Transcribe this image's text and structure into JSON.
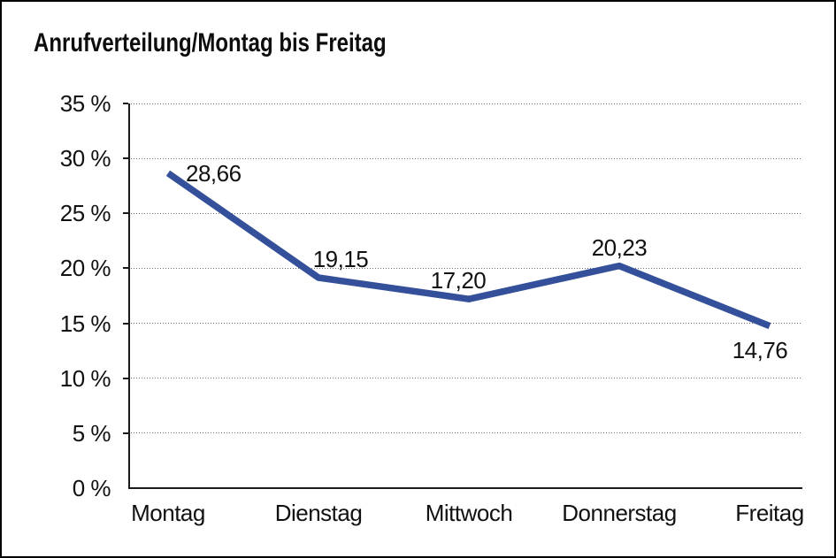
{
  "chart_data": {
    "type": "line",
    "title": "Anrufverteilung/Montag bis Freitag",
    "categories": [
      "Montag",
      "Dienstag",
      "Mittwoch",
      "Donnerstag",
      "Freitag"
    ],
    "values": [
      28.66,
      19.15,
      17.2,
      20.23,
      14.76
    ],
    "value_labels": [
      "28,66",
      "19,15",
      "17,20",
      "20,23",
      "14,76"
    ],
    "ylabel": "",
    "xlabel": "",
    "ylim": [
      0,
      35
    ],
    "y_tick_step": 5,
    "y_tick_labels": [
      "0 %",
      "5 %",
      "10 %",
      "15 %",
      "20 %",
      "25 %",
      "30 %",
      "35 %"
    ],
    "grid": "horizontal-dotted",
    "legend_position": "none",
    "line_color": "#34509A",
    "axis_color": "#1a1a1a",
    "background_color": "#ffffff"
  }
}
